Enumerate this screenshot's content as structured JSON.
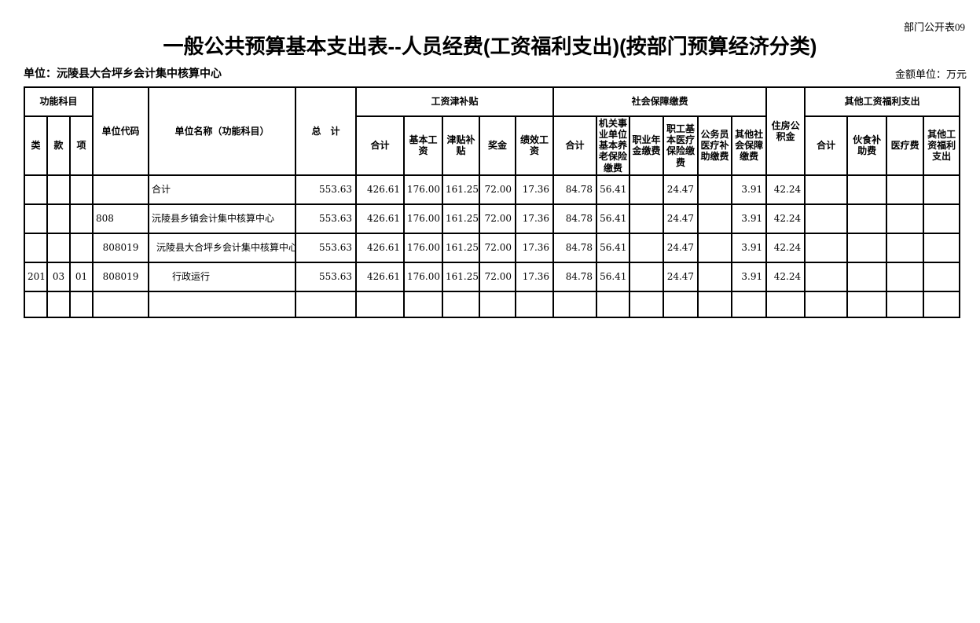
{
  "page": {
    "doc_label": "部门公开表09",
    "title": "一般公共预算基本支出表--人员经费(工资福利支出)(按部门预算经济分类)",
    "unit_label": "单位：沅陵县大合坪乡会计集中核算中心",
    "amount_unit_label": "金额单位：万元"
  },
  "table": {
    "header": {
      "func_subject": "功能科目",
      "lei": "类",
      "kuan": "款",
      "xiang": "项",
      "unit_code": "单位代码",
      "unit_name": "单位名称（功能科目）",
      "grand_total": "总　计",
      "salary_group": "工资津补贴",
      "salary_cols": [
        "合计",
        "基本工资",
        "津贴补贴",
        "奖金",
        "绩效工资"
      ],
      "social_group": "社会保障缴费",
      "social_cols": [
        "合计",
        "机关事业单位基本养老保险缴费",
        "职业年金缴费",
        "职工基本医疗保险缴费",
        "公务员医疗补助缴费",
        "其他社会保障缴费"
      ],
      "housing_fund": "住房公积金",
      "other_group": "其他工资福利支出",
      "other_cols": [
        "合计",
        "伙食补助费",
        "医疗费",
        "其他工资福利支出"
      ]
    },
    "rows": [
      {
        "lei": "",
        "kuan": "",
        "xiang": "",
        "code": "",
        "code_align": "left",
        "name": "合计",
        "name_indent": 0,
        "values": [
          "553.63",
          "426.61",
          "176.00",
          "161.25",
          "72.00",
          "17.36",
          "84.78",
          "56.41",
          "",
          "24.47",
          "",
          "3.91",
          "42.24",
          "",
          "",
          "",
          ""
        ]
      },
      {
        "lei": "",
        "kuan": "",
        "xiang": "",
        "code": "808",
        "code_align": "left",
        "name": "沅陵县乡镇会计集中核算中心",
        "name_indent": 0,
        "values": [
          "553.63",
          "426.61",
          "176.00",
          "161.25",
          "72.00",
          "17.36",
          "84.78",
          "56.41",
          "",
          "24.47",
          "",
          "3.91",
          "42.24",
          "",
          "",
          "",
          ""
        ]
      },
      {
        "lei": "",
        "kuan": "",
        "xiang": "",
        "code": "808019",
        "code_align": "center",
        "name": "沅陵县大合坪乡会计集中核算中心",
        "name_indent": 6,
        "values": [
          "553.63",
          "426.61",
          "176.00",
          "161.25",
          "72.00",
          "17.36",
          "84.78",
          "56.41",
          "",
          "24.47",
          "",
          "3.91",
          "42.24",
          "",
          "",
          "",
          ""
        ]
      },
      {
        "lei": "201",
        "kuan": "03",
        "xiang": "01",
        "code": "808019",
        "code_align": "center",
        "name": "行政运行",
        "name_indent": 26,
        "values": [
          "553.63",
          "426.61",
          "176.00",
          "161.25",
          "72.00",
          "17.36",
          "84.78",
          "56.41",
          "",
          "24.47",
          "",
          "3.91",
          "42.24",
          "",
          "",
          "",
          ""
        ]
      },
      {
        "lei": "",
        "kuan": "",
        "xiang": "",
        "code": "",
        "code_align": "left",
        "name": "",
        "name_indent": 0,
        "values": [
          "",
          "",
          "",
          "",
          "",
          "",
          "",
          "",
          "",
          "",
          "",
          "",
          "",
          "",
          "",
          "",
          ""
        ]
      }
    ]
  }
}
